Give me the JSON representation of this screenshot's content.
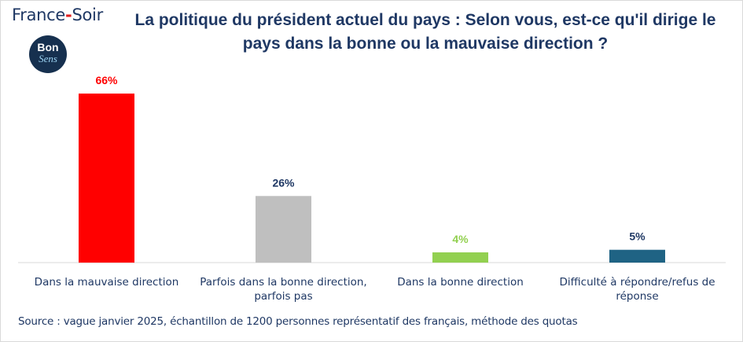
{
  "header": {
    "brand_prefix": "France",
    "brand_dash": "-",
    "brand_suffix": "Soir",
    "logo_line1": "Bon",
    "logo_line2": "Sens",
    "title": "La politique du président actuel du pays : Selon vous, est-ce qu'il dirige le pays dans la bonne ou la mauvaise direction ?"
  },
  "chart_data": {
    "type": "bar",
    "title": "La politique du président actuel du pays : Selon vous, est-ce qu'il dirige le pays dans la bonne ou la mauvaise direction ?",
    "categories": [
      [
        "Dans la mauvaise direction"
      ],
      [
        "Parfois dans la bonne direction,",
        "parfois pas"
      ],
      [
        "Dans la bonne direction"
      ],
      [
        "Difficulté à répondre/refus de",
        "réponse"
      ]
    ],
    "values": [
      66,
      26,
      4,
      5
    ],
    "data_labels": [
      "66%",
      "26%",
      "4%",
      "5%"
    ],
    "bar_colors": [
      "#ff0000",
      "#bfbfbf",
      "#92d050",
      "#1f6384"
    ],
    "label_colors": [
      "#ff0000",
      "#1f3864",
      "#92d050",
      "#1f3864"
    ],
    "ylim": [
      0,
      66
    ],
    "grid": false,
    "legend": false,
    "xlabel": "",
    "ylabel": ""
  },
  "footer": {
    "source": "Source : vague janvier 2025, échantillon de 1200 personnes représentatif des français, méthode des quotas"
  },
  "colors": {
    "title": "#1f3864",
    "axis": "#d9d9d9"
  }
}
